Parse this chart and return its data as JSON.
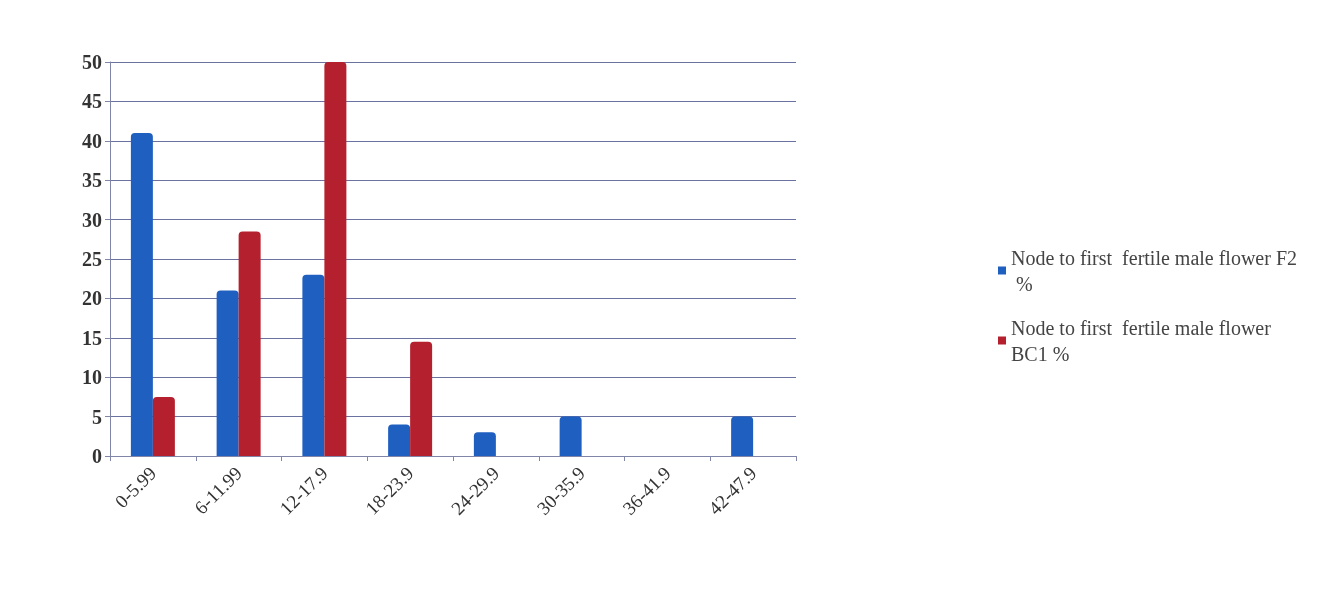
{
  "chart_data": {
    "type": "bar",
    "categories": [
      "0-5.99",
      "6-11.99",
      "12-17.9",
      "18-23.9",
      "24-29.9",
      "30-35.9",
      "36-41.9",
      "42-47.9"
    ],
    "series": [
      {
        "name": "Node to first  fertile male flower F2 %",
        "color": "#1f5fc0",
        "values": [
          41,
          21,
          23,
          4,
          3,
          5,
          null,
          5
        ]
      },
      {
        "name": "Node to first  fertile male flower BC1 %",
        "color": "#b5202e",
        "values": [
          7.5,
          28.5,
          50,
          14.5,
          null,
          null,
          null,
          null
        ]
      }
    ],
    "ylim": [
      0,
      50
    ],
    "yticks": [
      0,
      5,
      10,
      15,
      20,
      25,
      30,
      35,
      40,
      45,
      50
    ],
    "grid": "y",
    "legend": "right"
  }
}
